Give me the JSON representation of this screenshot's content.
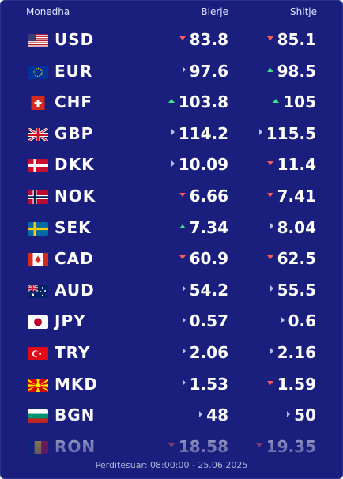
{
  "header": {
    "currency": "Monedha",
    "buy": "Blerje",
    "sell": "Shitje"
  },
  "rates": [
    {
      "code": "USD",
      "flag": "us-flag-icon",
      "buy": "83.8",
      "buy_trend": "down",
      "sell": "85.1",
      "sell_trend": "down"
    },
    {
      "code": "EUR",
      "flag": "eu-flag-icon",
      "buy": "97.6",
      "buy_trend": "neutral",
      "sell": "98.5",
      "sell_trend": "up"
    },
    {
      "code": "CHF",
      "flag": "ch-flag-icon",
      "buy": "103.8",
      "buy_trend": "up",
      "sell": "105",
      "sell_trend": "up"
    },
    {
      "code": "GBP",
      "flag": "gb-flag-icon",
      "buy": "114.2",
      "buy_trend": "neutral",
      "sell": "115.5",
      "sell_trend": "neutral"
    },
    {
      "code": "DKK",
      "flag": "dk-flag-icon",
      "buy": "10.09",
      "buy_trend": "neutral",
      "sell": "11.4",
      "sell_trend": "down"
    },
    {
      "code": "NOK",
      "flag": "no-flag-icon",
      "buy": "6.66",
      "buy_trend": "down",
      "sell": "7.41",
      "sell_trend": "down"
    },
    {
      "code": "SEK",
      "flag": "se-flag-icon",
      "buy": "7.34",
      "buy_trend": "up",
      "sell": "8.04",
      "sell_trend": "neutral"
    },
    {
      "code": "CAD",
      "flag": "ca-flag-icon",
      "buy": "60.9",
      "buy_trend": "down",
      "sell": "62.5",
      "sell_trend": "down"
    },
    {
      "code": "AUD",
      "flag": "au-flag-icon",
      "buy": "54.2",
      "buy_trend": "neutral",
      "sell": "55.5",
      "sell_trend": "neutral"
    },
    {
      "code": "JPY",
      "flag": "jp-flag-icon",
      "buy": "0.57",
      "buy_trend": "neutral",
      "sell": "0.6",
      "sell_trend": "neutral"
    },
    {
      "code": "TRY",
      "flag": "tr-flag-icon",
      "buy": "2.06",
      "buy_trend": "neutral",
      "sell": "2.16",
      "sell_trend": "neutral"
    },
    {
      "code": "MKD",
      "flag": "mk-flag-icon",
      "buy": "1.53",
      "buy_trend": "neutral",
      "sell": "1.59",
      "sell_trend": "down"
    },
    {
      "code": "BGN",
      "flag": "bg-flag-icon",
      "buy": "48",
      "buy_trend": "neutral",
      "sell": "50",
      "sell_trend": "neutral"
    },
    {
      "code": "RON",
      "flag": "ro-flag-icon",
      "buy": "18.58",
      "buy_trend": "down",
      "sell": "19.35",
      "sell_trend": "down"
    }
  ],
  "footer": {
    "updated": "Përditësuar: 08:00:00 - 25.06.2025"
  },
  "colors": {
    "panel_bg": "#1a1f7e",
    "up": "#3ee08a",
    "down": "#ff5a5a",
    "neutral": "#b8bfe6"
  }
}
